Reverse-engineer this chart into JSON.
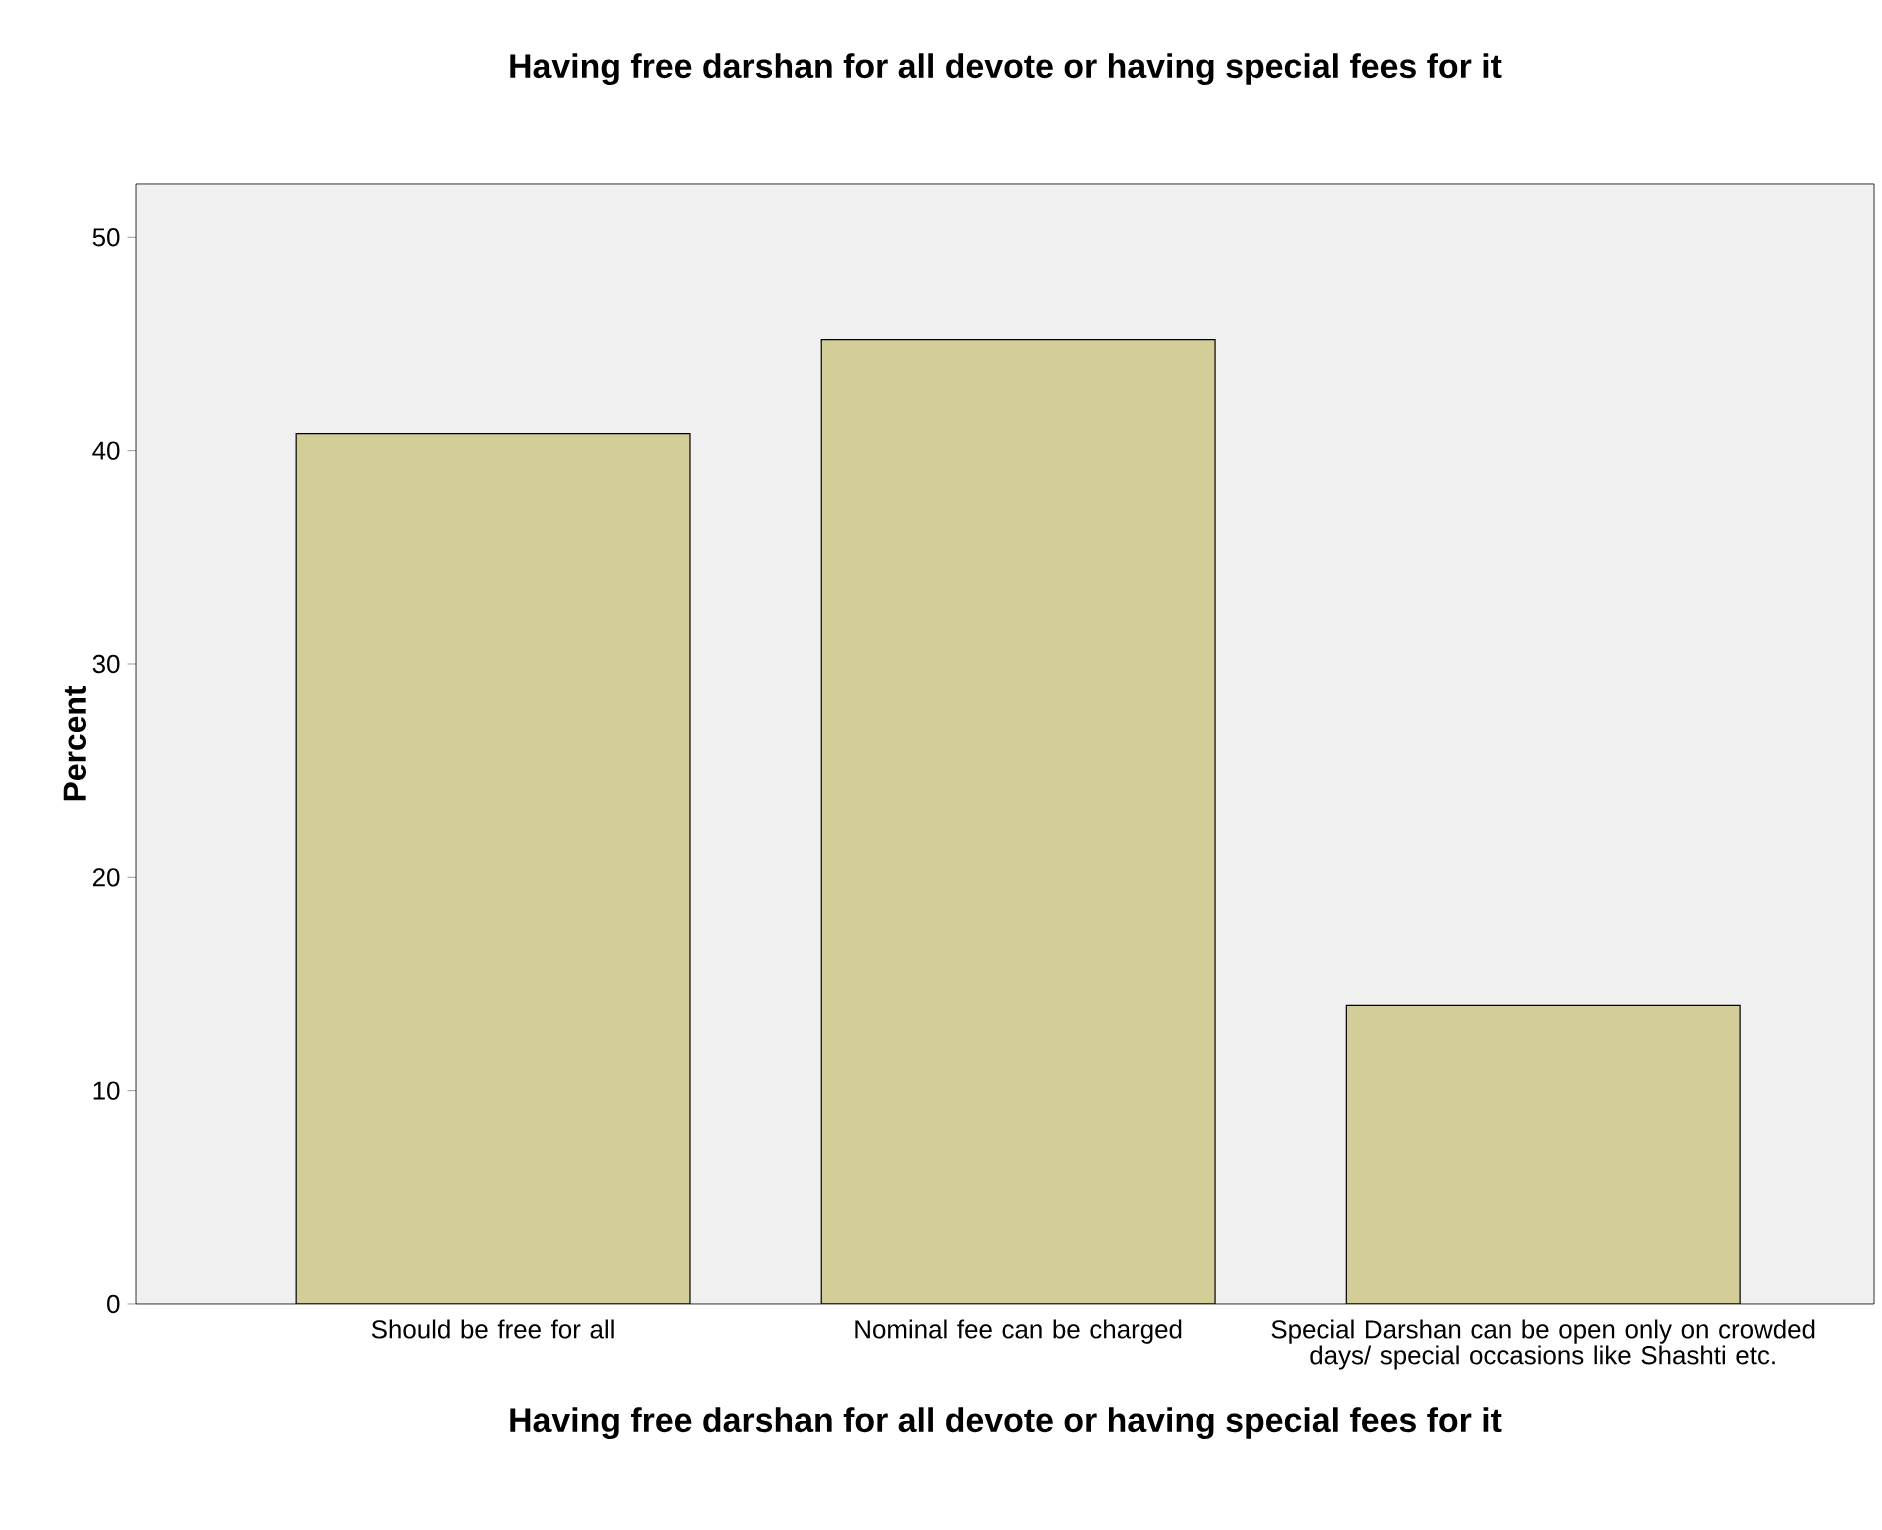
{
  "chart_data": {
    "type": "bar",
    "title": "Having free darshan for all devote or having special fees for it",
    "xlabel": "Having free darshan for all devote or having special fees for it",
    "ylabel": "Percent",
    "categories": [
      "Should be free for all",
      "Nominal fee can be charged",
      "Special Darshan can be open only on crowded days/ special occasions like Shashti etc."
    ],
    "values": [
      40.8,
      45.2,
      14.0
    ],
    "color": "#d3ce97",
    "ylim": [
      0,
      52.5
    ],
    "yticks": [
      0,
      10,
      20,
      30,
      40,
      50
    ],
    "grid": false
  }
}
